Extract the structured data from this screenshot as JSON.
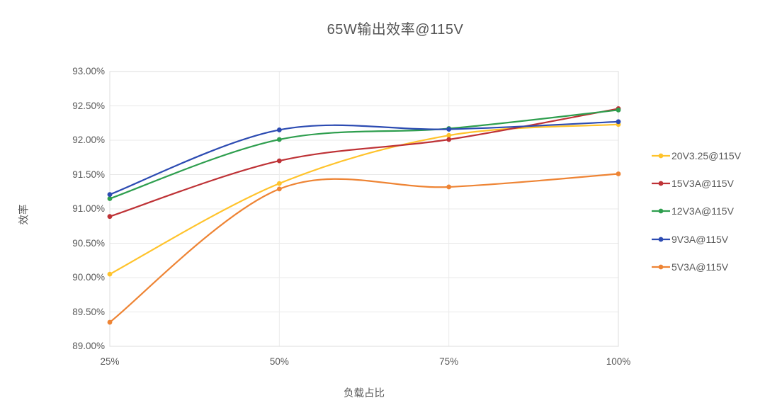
{
  "chart_data": {
    "type": "line",
    "title": "65W输出效率@115V",
    "xlabel": "负载占比",
    "ylabel": "效率",
    "categories": [
      "25%",
      "50%",
      "75%",
      "100%"
    ],
    "y_tick_labels": [
      "93.00%",
      "92.50%",
      "92.00%",
      "91.50%",
      "91.00%",
      "90.50%",
      "90.00%",
      "89.50%",
      "89.00%"
    ],
    "ylim": [
      89.0,
      93.0
    ],
    "y_step": 0.5,
    "grid": true,
    "smooth": true,
    "legend_position": "right",
    "colors": {
      "grid": "#e8e8e8",
      "border": "#dcdcdc",
      "text": "#595959",
      "title": "#545454"
    },
    "series": [
      {
        "name": "20V3.25@115V",
        "color": "#ffc32b",
        "values": [
          90.05,
          91.37,
          92.07,
          92.23
        ]
      },
      {
        "name": "15V3A@115V",
        "color": "#be3236",
        "values": [
          90.89,
          91.7,
          92.01,
          92.46
        ]
      },
      {
        "name": "12V3A@115V",
        "color": "#2e9e4e",
        "values": [
          91.15,
          92.01,
          92.17,
          92.44
        ]
      },
      {
        "name": "9V3A@115V",
        "color": "#2c4bb2",
        "values": [
          91.21,
          92.15,
          92.16,
          92.27
        ]
      },
      {
        "name": "5V3A@115V",
        "color": "#ee8434",
        "values": [
          89.35,
          91.29,
          91.32,
          91.51
        ]
      }
    ]
  }
}
